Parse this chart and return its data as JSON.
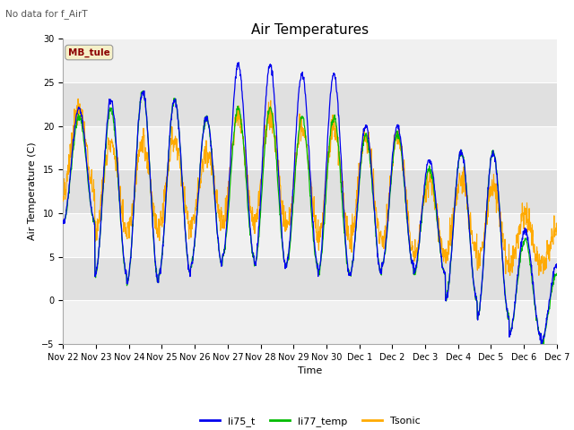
{
  "title": "Air Temperatures",
  "xlabel": "Time",
  "ylabel": "Air Temperature (C)",
  "top_left_text": "No data for f_AirT",
  "box_label": "MB_tule",
  "ylim": [
    -5,
    30
  ],
  "yticks": [
    -5,
    0,
    5,
    10,
    15,
    20,
    25,
    30
  ],
  "series": {
    "li75_t": {
      "color": "#0000ee",
      "label": "li75_t"
    },
    "li77_temp": {
      "color": "#00bb00",
      "label": "li77_temp"
    },
    "Tsonic": {
      "color": "#ffaa00",
      "label": "Tsonic"
    }
  },
  "x_tick_labels": [
    "Nov 22",
    "Nov 23",
    "Nov 24",
    "Nov 25",
    "Nov 26",
    "Nov 27",
    "Nov 28",
    "Nov 29",
    "Nov 30",
    "Dec 1",
    "Dec 2",
    "Dec 3",
    "Dec 4",
    "Dec 5",
    "Dec 6",
    "Dec 7"
  ],
  "fig_bg_color": "#ffffff",
  "plot_bg_color": "#e8e8e8",
  "band_color_light": "#f0f0f0",
  "band_color_dark": "#e0e0e0",
  "grid_color": "#ffffff",
  "title_fontsize": 11,
  "axis_fontsize": 8,
  "tick_fontsize": 7,
  "n_days": 15.5,
  "base_li75": [
    9,
    3,
    2,
    3,
    4,
    5,
    4,
    4,
    3,
    3,
    4,
    3,
    0,
    -2,
    -4,
    -5
  ],
  "peak_li75": [
    22,
    23,
    24,
    23,
    21,
    27,
    27,
    26,
    26,
    20,
    20,
    16,
    17,
    17,
    8,
    4
  ],
  "base_li77": [
    9,
    3,
    2,
    3,
    4,
    5,
    4,
    4,
    3,
    3,
    4,
    3,
    0,
    -2,
    -4,
    -5
  ],
  "peak_li77": [
    21,
    22,
    24,
    23,
    21,
    22,
    22,
    21,
    21,
    19,
    19,
    15,
    17,
    17,
    7,
    3
  ],
  "base_tsonic": [
    12,
    8,
    8,
    9,
    9,
    9,
    9,
    8,
    7,
    7,
    6,
    5,
    5,
    4,
    4,
    4
  ],
  "peak_tsonic": [
    22,
    18,
    18,
    18,
    17,
    21,
    21,
    20,
    20,
    19,
    19,
    14,
    14,
    13,
    10,
    8
  ]
}
